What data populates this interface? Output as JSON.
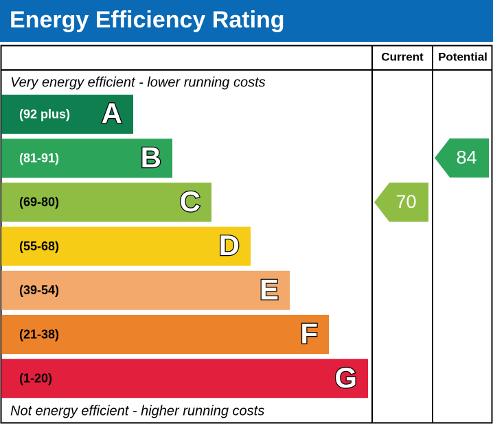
{
  "title": "Energy Efficiency Rating",
  "headers": {
    "current": "Current",
    "potential": "Potential"
  },
  "top_note": "Very energy efficient - lower running costs",
  "bottom_note": "Not energy efficient - higher running costs",
  "bands": [
    {
      "range": "(92 plus)",
      "letter": "A",
      "color": "#107f4f"
    },
    {
      "range": "(81-91)",
      "letter": "B",
      "color": "#2ca55a"
    },
    {
      "range": "(69-80)",
      "letter": "C",
      "color": "#8fbd44"
    },
    {
      "range": "(55-68)",
      "letter": "D",
      "color": "#f6cc16"
    },
    {
      "range": "(39-54)",
      "letter": "E",
      "color": "#f2a96b"
    },
    {
      "range": "(21-38)",
      "letter": "F",
      "color": "#ec8229"
    },
    {
      "range": "(1-20)",
      "letter": "G",
      "color": "#e21f3d"
    }
  ],
  "current": {
    "value": 70,
    "color": "#8fbd44"
  },
  "potential": {
    "value": 84,
    "color": "#2ca55a"
  }
}
